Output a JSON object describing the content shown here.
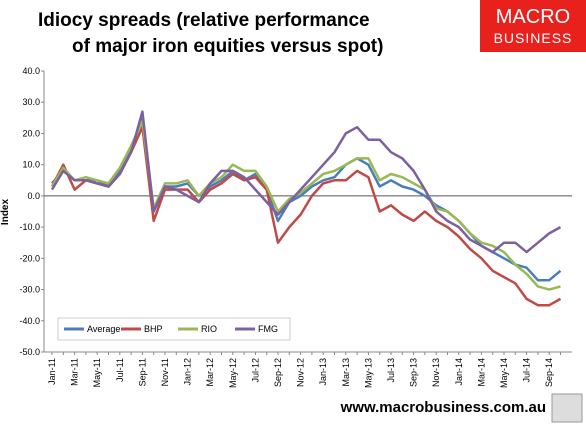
{
  "chart_data": {
    "type": "line",
    "title": [
      "Idiocy spreads (relative performance",
      "of major iron equities versus spot)"
    ],
    "y_label": "Index",
    "categories": [
      "Jan-11",
      null,
      "Mar-11",
      null,
      "May-11",
      null,
      "Jul-11",
      null,
      "Sep-11",
      null,
      "Nov-11",
      null,
      "Jan-12",
      null,
      "Mar-12",
      null,
      "May-12",
      null,
      "Jul-12",
      null,
      "Sep-12",
      null,
      "Nov-12",
      null,
      "Jan-13",
      null,
      "Mar-13",
      null,
      "May-13",
      null,
      "Jul-13",
      null,
      "Sep-13",
      null,
      "Nov-13",
      null,
      "Jan-14",
      null,
      "Mar-14",
      null,
      "May-14",
      null,
      "Jul-14",
      null,
      "Sep-14",
      null
    ],
    "series": [
      {
        "name": "Average",
        "color": "#4a7ebb",
        "values": [
          4,
          8,
          5,
          5,
          5,
          3,
          8,
          15,
          25,
          -5,
          3,
          3,
          4,
          0,
          3,
          5,
          8,
          5,
          7,
          2,
          -8,
          -2,
          0,
          3,
          5,
          6,
          10,
          12,
          10,
          3,
          5,
          3,
          2,
          0,
          -3,
          -5,
          -8,
          -12,
          -16,
          -18,
          -20,
          -22,
          -23,
          -27,
          -27,
          -24
        ]
      },
      {
        "name": "BHP",
        "color": "#be4b48",
        "values": [
          3,
          10,
          2,
          5,
          4,
          3,
          7,
          14,
          22,
          -8,
          2,
          2,
          2,
          -2,
          2,
          4,
          7,
          5,
          6,
          2,
          -15,
          -10,
          -6,
          0,
          4,
          5,
          5,
          8,
          6,
          -5,
          -3,
          -6,
          -8,
          -5,
          -8,
          -10,
          -13,
          -17,
          -20,
          -24,
          -26,
          -28,
          -33,
          -35,
          -35,
          -33
        ]
      },
      {
        "name": "RIO",
        "color": "#98b954",
        "values": [
          3,
          9,
          5,
          6,
          5,
          4,
          9,
          16,
          24,
          -4,
          4,
          4,
          5,
          0,
          4,
          6,
          10,
          8,
          8,
          3,
          -5,
          -1,
          1,
          4,
          7,
          8,
          10,
          12,
          12,
          5,
          7,
          6,
          4,
          2,
          -4,
          -5,
          -8,
          -12,
          -15,
          -16,
          -18,
          -22,
          -25,
          -29,
          -30,
          -29
        ]
      },
      {
        "name": "FMG",
        "color": "#7d60a0",
        "values": [
          2,
          8,
          5,
          5,
          4,
          3,
          7,
          14,
          27,
          -5,
          3,
          2,
          0,
          -2,
          4,
          8,
          8,
          6,
          2,
          -2,
          -6,
          -2,
          2,
          6,
          10,
          14,
          20,
          22,
          18,
          18,
          14,
          12,
          8,
          2,
          -5,
          -8,
          -10,
          -14,
          -16,
          -18,
          -15,
          -15,
          -18,
          -15,
          -12,
          -10
        ]
      }
    ],
    "ylim": [
      -50,
      40
    ],
    "yticks": [
      {
        "value": 40,
        "label": "40.0"
      },
      {
        "value": 30,
        "label": "30.0"
      },
      {
        "value": 20,
        "label": "20.0"
      },
      {
        "value": 10,
        "label": "10.0"
      },
      {
        "value": 0,
        "label": "0.0"
      },
      {
        "value": -10,
        "label": "-10.0"
      },
      {
        "value": -20,
        "label": "-20.0"
      },
      {
        "value": -30,
        "label": "-30.0"
      },
      {
        "value": -40,
        "label": "-40.0"
      },
      {
        "value": -50,
        "label": "-50.0"
      }
    ],
    "grid": false,
    "legend": "lower left"
  },
  "branding": {
    "logo_top": "MACRO",
    "logo_bottom": "BUSINESS",
    "url": "www.macrobusiness.com.au"
  }
}
